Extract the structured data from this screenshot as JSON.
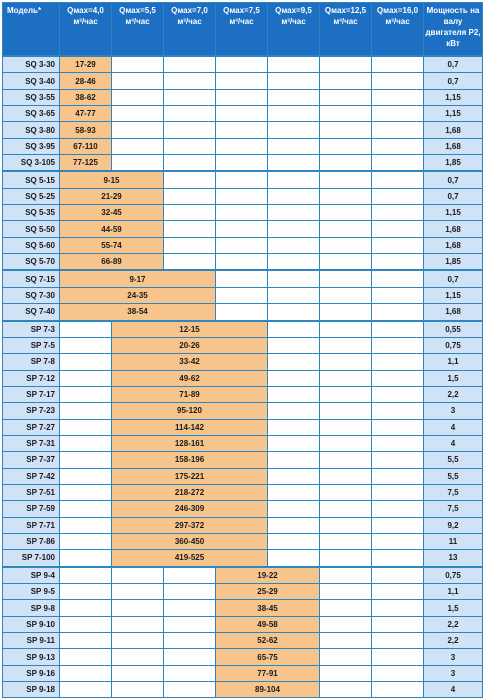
{
  "header": {
    "model": "Модель*",
    "q_columns": [
      {
        "line1": "Qмах=4,0",
        "line2": "м³/час"
      },
      {
        "line1": "Qмах=5,5",
        "line2": "м³/час"
      },
      {
        "line1": "Qмах=7,0",
        "line2": "м³/час"
      },
      {
        "line1": "Qмах=7,5",
        "line2": "м³/час"
      },
      {
        "line1": "Qмах=9,5",
        "line2": "м³/час"
      },
      {
        "line1": "Qмах=12,5",
        "line2": "м³/час"
      },
      {
        "line1": "Qмах=16,0",
        "line2": "м³/час"
      }
    ],
    "power": "Мощность на валу двигателя Р2, кВт"
  },
  "rows": [
    {
      "model": "SQ 3-30",
      "start": 0,
      "span": 1,
      "range": "17-29",
      "power": "0,7",
      "group_start": true
    },
    {
      "model": "SQ 3-40",
      "start": 0,
      "span": 1,
      "range": "28-46",
      "power": "0,7"
    },
    {
      "model": "SQ 3-55",
      "start": 0,
      "span": 1,
      "range": "38-62",
      "power": "1,15"
    },
    {
      "model": "SQ 3-65",
      "start": 0,
      "span": 1,
      "range": "47-77",
      "power": "1,15"
    },
    {
      "model": "SQ 3-80",
      "start": 0,
      "span": 1,
      "range": "58-93",
      "power": "1,68"
    },
    {
      "model": "SQ 3-95",
      "start": 0,
      "span": 1,
      "range": "67-110",
      "power": "1,68"
    },
    {
      "model": "SQ 3-105",
      "start": 0,
      "span": 1,
      "range": "77-125",
      "power": "1,85"
    },
    {
      "model": "SQ 5-15",
      "start": 0,
      "span": 2,
      "range": "9-15",
      "power": "0,7",
      "group_start": true
    },
    {
      "model": "SQ 5-25",
      "start": 0,
      "span": 2,
      "range": "21-29",
      "power": "0,7"
    },
    {
      "model": "SQ 5-35",
      "start": 0,
      "span": 2,
      "range": "32-45",
      "power": "1,15"
    },
    {
      "model": "SQ 5-50",
      "start": 0,
      "span": 2,
      "range": "44-59",
      "power": "1,68"
    },
    {
      "model": "SQ 5-60",
      "start": 0,
      "span": 2,
      "range": "55-74",
      "power": "1,68"
    },
    {
      "model": "SQ 5-70",
      "start": 0,
      "span": 2,
      "range": "66-89",
      "power": "1,85"
    },
    {
      "model": "SQ 7-15",
      "start": 0,
      "span": 3,
      "range": "9-17",
      "power": "0,7",
      "group_start": true
    },
    {
      "model": "SQ 7-30",
      "start": 0,
      "span": 3,
      "range": "24-35",
      "power": "1,15"
    },
    {
      "model": "SQ 7-40",
      "start": 0,
      "span": 3,
      "range": "38-54",
      "power": "1,68"
    },
    {
      "model": "SP 7-3",
      "start": 1,
      "span": 3,
      "range": "12-15",
      "power": "0,55",
      "group_start": true
    },
    {
      "model": "SP 7-5",
      "start": 1,
      "span": 3,
      "range": "20-26",
      "power": "0,75"
    },
    {
      "model": "SP 7-8",
      "start": 1,
      "span": 3,
      "range": "33-42",
      "power": "1,1"
    },
    {
      "model": "SP 7-12",
      "start": 1,
      "span": 3,
      "range": "49-62",
      "power": "1,5"
    },
    {
      "model": "SP 7-17",
      "start": 1,
      "span": 3,
      "range": "71-89",
      "power": "2,2"
    },
    {
      "model": "SP 7-23",
      "start": 1,
      "span": 3,
      "range": "95-120",
      "power": "3"
    },
    {
      "model": "SP 7-27",
      "start": 1,
      "span": 3,
      "range": "114-142",
      "power": "4"
    },
    {
      "model": "SP 7-31",
      "start": 1,
      "span": 3,
      "range": "128-161",
      "power": "4"
    },
    {
      "model": "SP 7-37",
      "start": 1,
      "span": 3,
      "range": "158-196",
      "power": "5,5"
    },
    {
      "model": "SP 7-42",
      "start": 1,
      "span": 3,
      "range": "175-221",
      "power": "5,5"
    },
    {
      "model": "SP 7-51",
      "start": 1,
      "span": 3,
      "range": "218-272",
      "power": "7,5"
    },
    {
      "model": "SP 7-59",
      "start": 1,
      "span": 3,
      "range": "246-309",
      "power": "7,5"
    },
    {
      "model": "SP 7-71",
      "start": 1,
      "span": 3,
      "range": "297-372",
      "power": "9,2"
    },
    {
      "model": "SP 7-86",
      "start": 1,
      "span": 3,
      "range": "360-450",
      "power": "11"
    },
    {
      "model": "SP 7-100",
      "start": 1,
      "span": 3,
      "range": "419-525",
      "power": "13"
    },
    {
      "model": "SP 9-4",
      "start": 3,
      "span": 2,
      "range": "19-22",
      "power": "0,75",
      "group_start": true
    },
    {
      "model": "SP 9-5",
      "start": 3,
      "span": 2,
      "range": "25-29",
      "power": "1,1"
    },
    {
      "model": "SP 9-8",
      "start": 3,
      "span": 2,
      "range": "38-45",
      "power": "1,5"
    },
    {
      "model": "SP 9-10",
      "start": 3,
      "span": 2,
      "range": "49-58",
      "power": "2,2"
    },
    {
      "model": "SP 9-11",
      "start": 3,
      "span": 2,
      "range": "52-62",
      "power": "2,2"
    },
    {
      "model": "SP 9-13",
      "start": 3,
      "span": 2,
      "range": "65-75",
      "power": "3"
    },
    {
      "model": "SP 9-16",
      "start": 3,
      "span": 2,
      "range": "77-91",
      "power": "3"
    },
    {
      "model": "SP 9-18",
      "start": 3,
      "span": 2,
      "range": "89-104",
      "power": "4"
    }
  ]
}
